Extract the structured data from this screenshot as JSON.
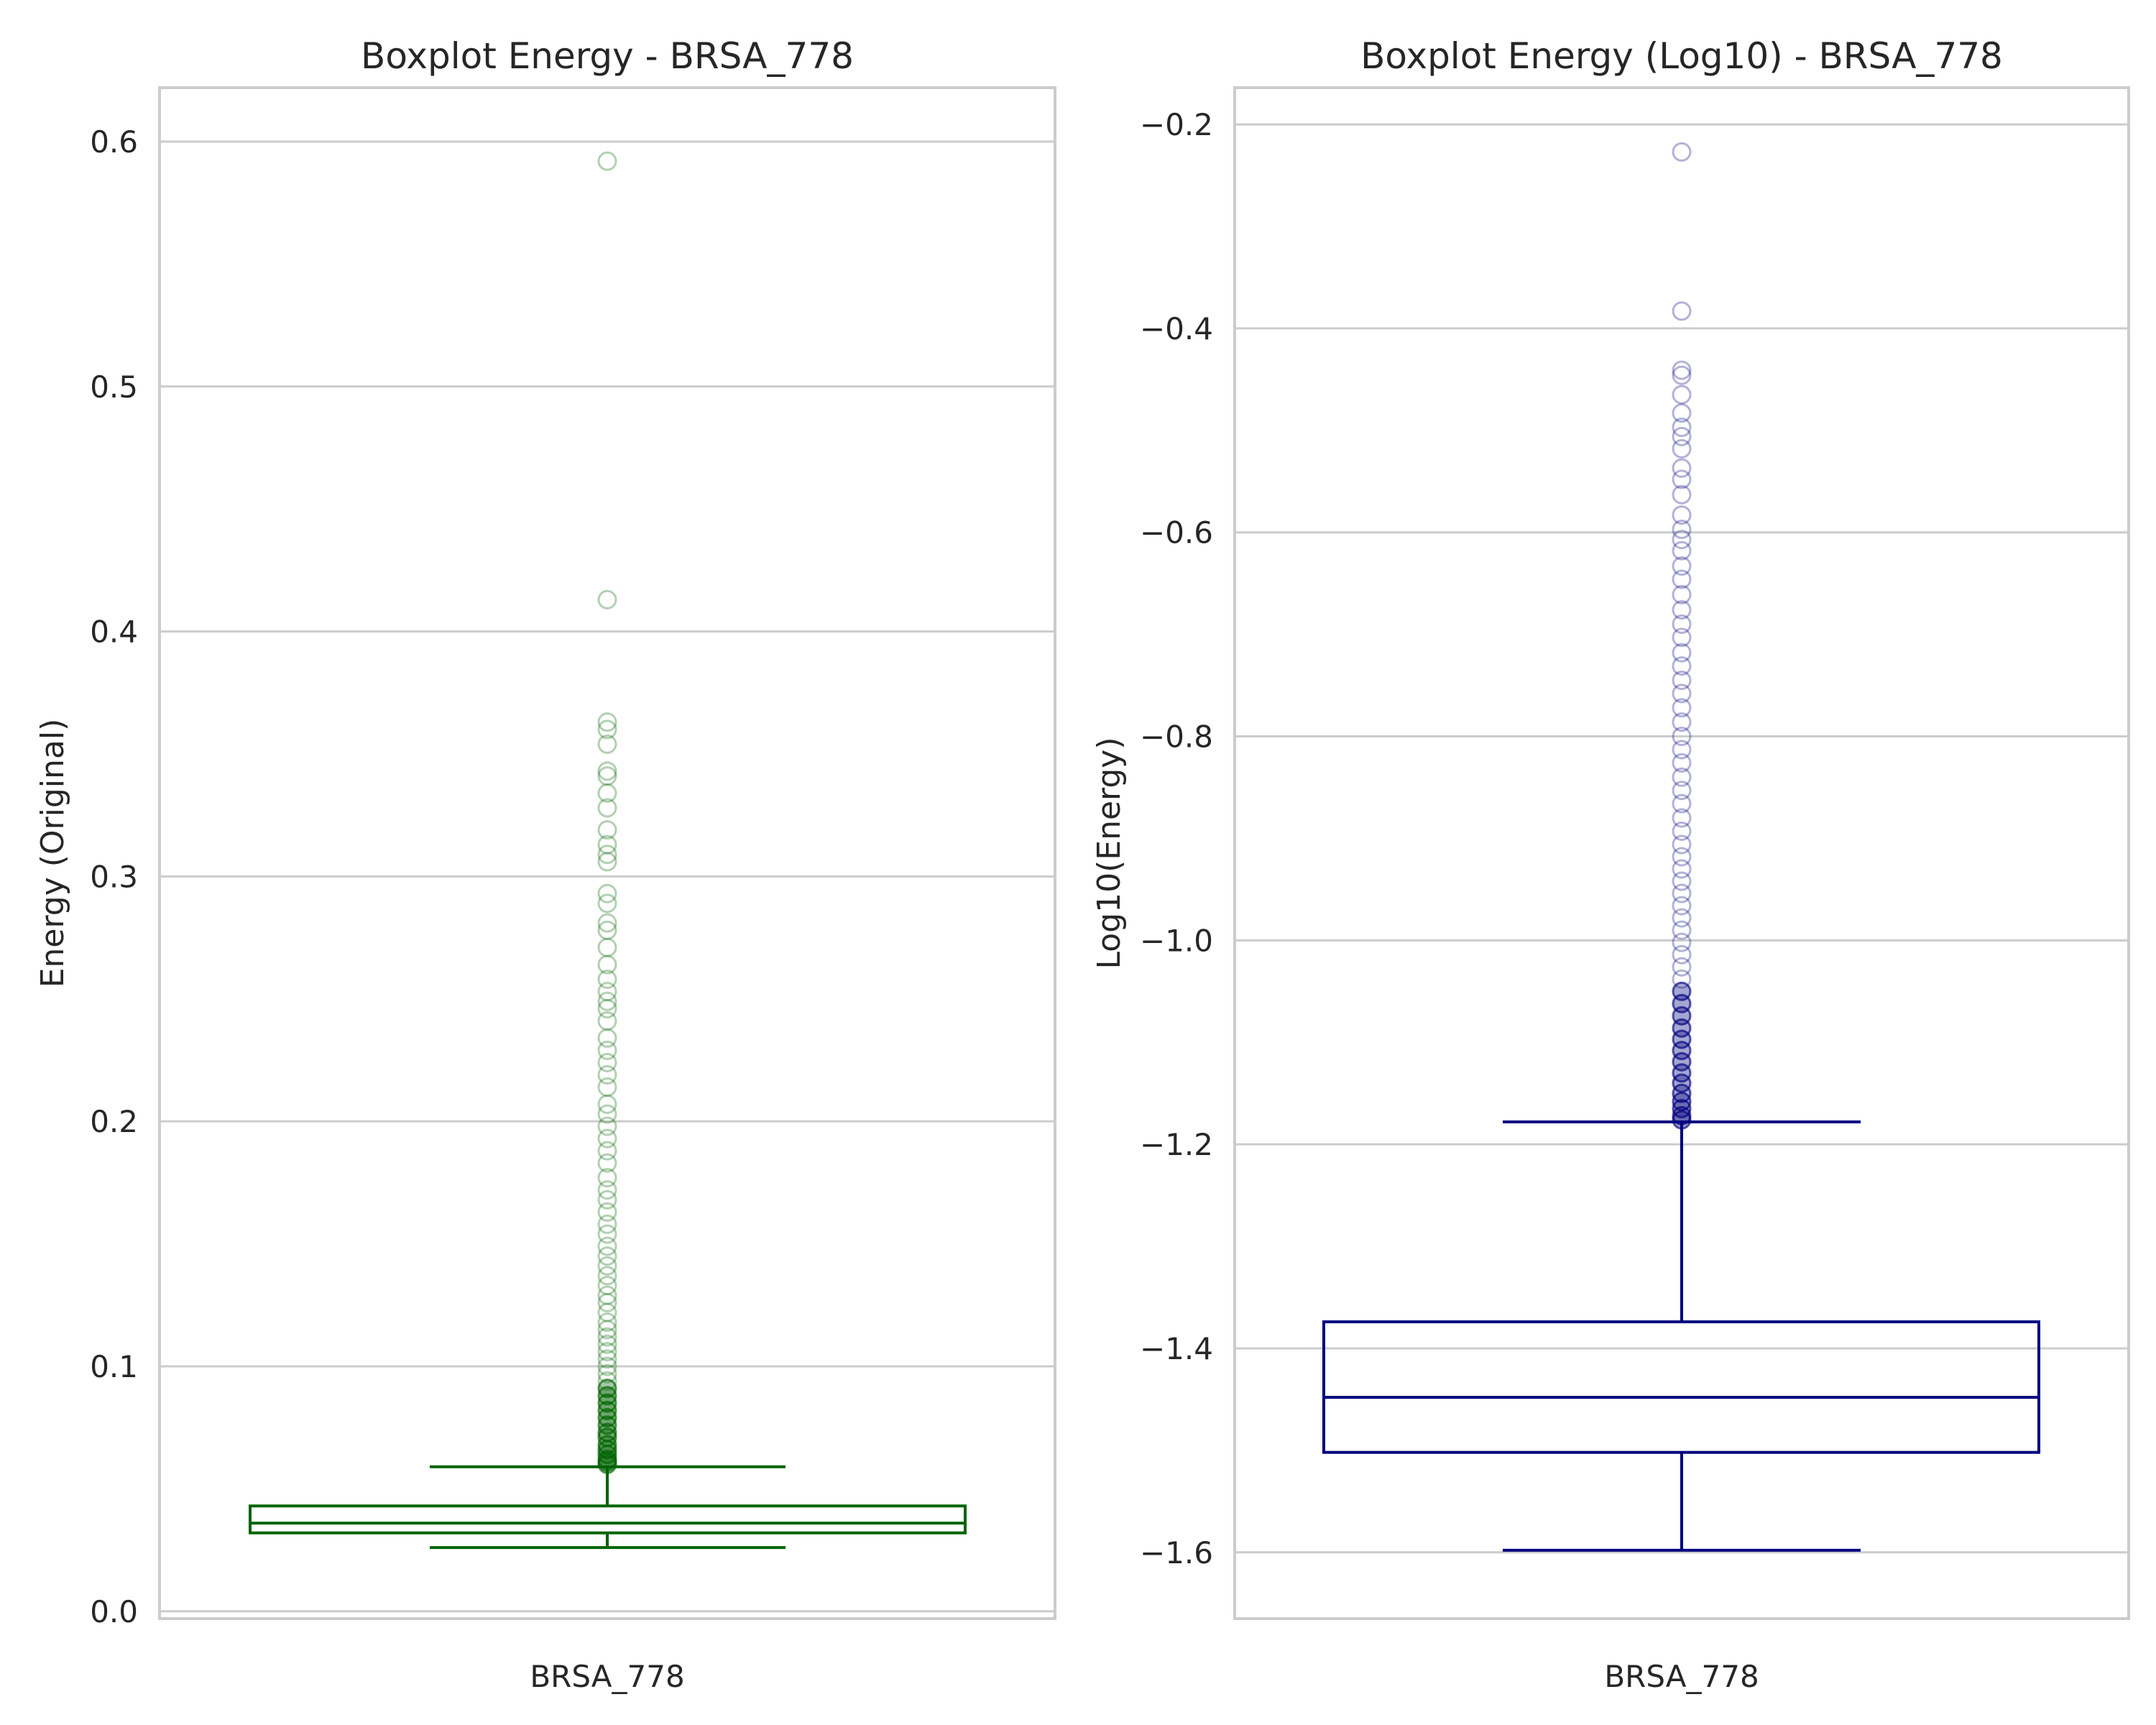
{
  "chart_data": [
    {
      "type": "box",
      "title": "Boxplot Energy - BRSA_778",
      "xlabel": "",
      "ylabel": "Energy (Original)",
      "categories": [
        "BRSA_778"
      ],
      "ylim": [
        -0.003,
        0.622
      ],
      "yticks": [
        "0.0",
        "0.1",
        "0.2",
        "0.3",
        "0.4",
        "0.5",
        "0.6"
      ],
      "grid": true,
      "color": "#006400",
      "box": {
        "whisker_low": 0.026,
        "q1": 0.032,
        "median": 0.036,
        "q3": 0.043,
        "whisker_high": 0.059
      },
      "outliers": [
        0.592,
        0.413,
        0.363,
        0.36,
        0.354,
        0.343,
        0.341,
        0.334,
        0.328,
        0.319,
        0.313,
        0.309,
        0.306,
        0.293,
        0.289,
        0.281,
        0.278,
        0.271,
        0.264,
        0.258,
        0.253,
        0.249,
        0.246,
        0.241,
        0.234,
        0.229,
        0.224,
        0.219,
        0.214,
        0.207,
        0.203,
        0.198,
        0.193,
        0.188,
        0.183,
        0.177,
        0.172,
        0.168,
        0.163,
        0.158,
        0.154,
        0.149,
        0.145,
        0.141,
        0.137,
        0.133,
        0.129,
        0.126,
        0.122,
        0.118,
        0.115,
        0.112,
        0.109,
        0.106,
        0.103,
        0.1,
        0.097,
        0.094,
        0.091,
        0.088,
        0.085,
        0.082,
        0.079,
        0.076,
        0.073,
        0.071,
        0.068,
        0.066,
        0.064,
        0.062,
        0.061,
        0.06
      ]
    },
    {
      "type": "box",
      "title": "Boxplot Energy (Log10) - BRSA_778",
      "xlabel": "",
      "ylabel": "Log10(Energy)",
      "categories": [
        "BRSA_778"
      ],
      "ylim": [
        -1.665,
        -0.164
      ],
      "yticks": [
        "−1.6",
        "−1.4",
        "−1.2",
        "−1.0",
        "−0.8",
        "−0.6",
        "−0.4",
        "−0.2"
      ],
      "grid": true,
      "color": "#00007f",
      "box": {
        "whisker_low": -1.598,
        "q1": -1.502,
        "median": -1.448,
        "q3": -1.374,
        "whisker_high": -1.178
      },
      "outliers": [
        -0.227,
        -0.383,
        -0.441,
        -0.446,
        -0.465,
        -0.483,
        -0.497,
        -0.506,
        -0.518,
        -0.537,
        -0.548,
        -0.563,
        -0.583,
        -0.597,
        -0.607,
        -0.618,
        -0.633,
        -0.646,
        -0.661,
        -0.676,
        -0.69,
        -0.703,
        -0.718,
        -0.731,
        -0.745,
        -0.758,
        -0.772,
        -0.786,
        -0.8,
        -0.813,
        -0.826,
        -0.84,
        -0.853,
        -0.866,
        -0.88,
        -0.893,
        -0.906,
        -0.918,
        -0.93,
        -0.942,
        -0.954,
        -0.966,
        -0.978,
        -0.99,
        -1.002,
        -1.014,
        -1.026,
        -1.038,
        -1.05,
        -1.062,
        -1.074,
        -1.086,
        -1.097,
        -1.108,
        -1.119,
        -1.13,
        -1.14,
        -1.15,
        -1.158,
        -1.165,
        -1.172,
        -1.176
      ]
    }
  ]
}
